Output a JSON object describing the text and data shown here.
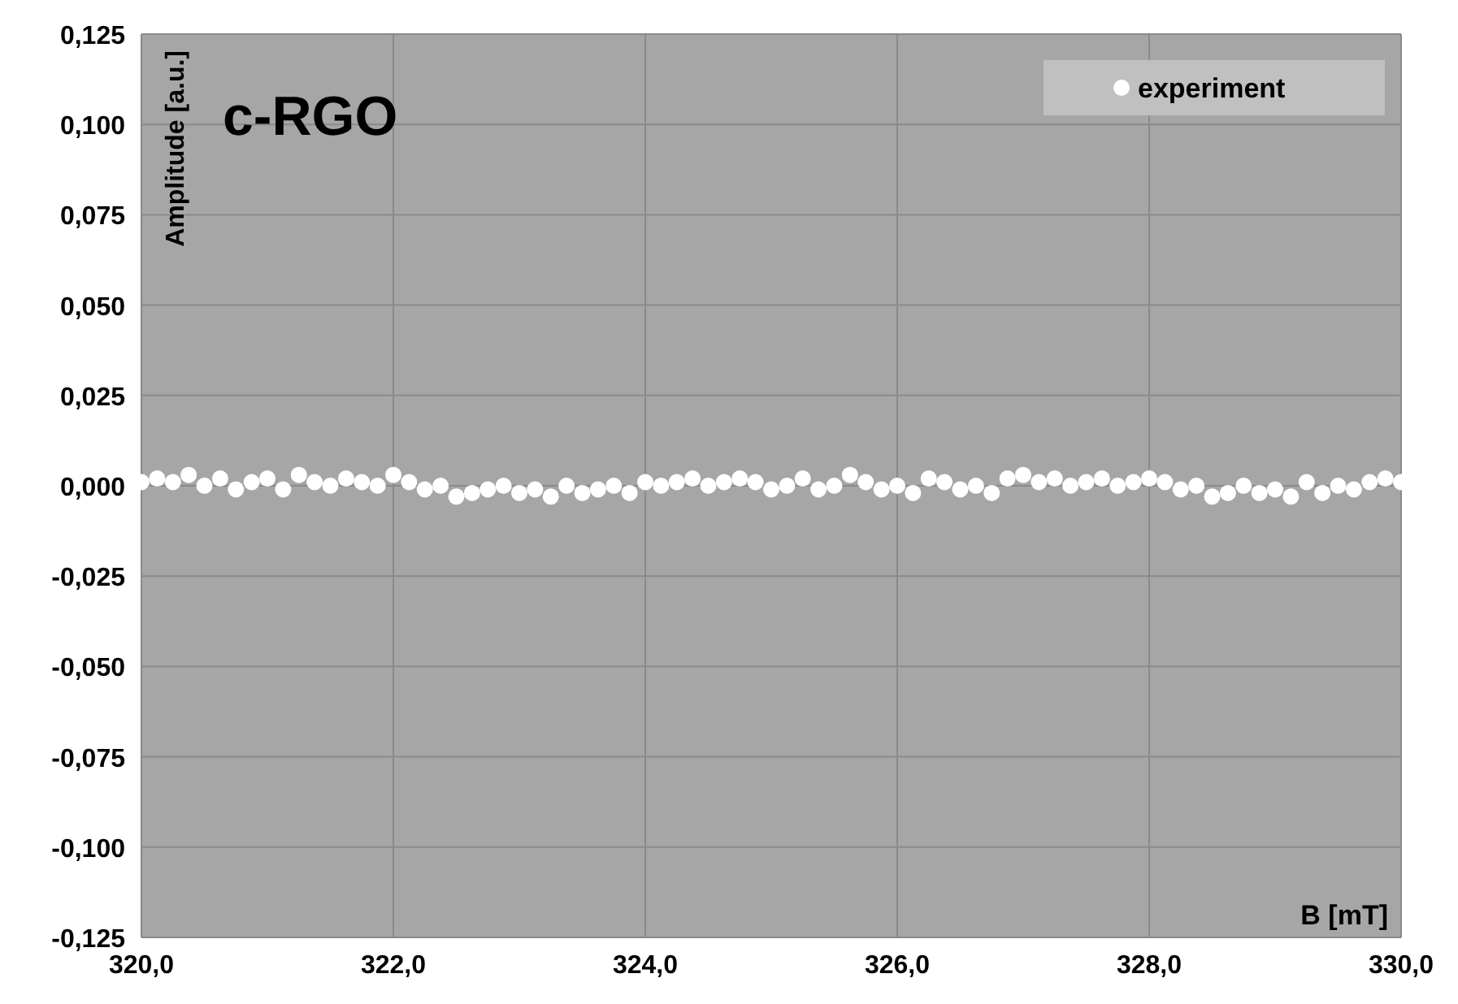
{
  "chart_data": {
    "type": "scatter",
    "xlabel": "B [mT]",
    "ylabel": "Amplitude [a.u.]",
    "annotations": [
      "c-RGO"
    ],
    "xlim": [
      320,
      330
    ],
    "ylim": [
      -0.125,
      0.125
    ],
    "xticks": [
      {
        "value": 320,
        "label": "320,0"
      },
      {
        "value": 322,
        "label": "322,0"
      },
      {
        "value": 324,
        "label": "324,0"
      },
      {
        "value": 326,
        "label": "326,0"
      },
      {
        "value": 328,
        "label": "328,0"
      },
      {
        "value": 330,
        "label": "330,0"
      }
    ],
    "yticks": [
      {
        "value": -0.125,
        "label": "-0,125"
      },
      {
        "value": -0.1,
        "label": "-0,100"
      },
      {
        "value": -0.075,
        "label": "-0,075"
      },
      {
        "value": -0.05,
        "label": "-0,050"
      },
      {
        "value": -0.025,
        "label": "-0,025"
      },
      {
        "value": 0,
        "label": "0,000"
      },
      {
        "value": 0.025,
        "label": "0,025"
      },
      {
        "value": 0.05,
        "label": "0,050"
      },
      {
        "value": 0.075,
        "label": "0,075"
      },
      {
        "value": 0.1,
        "label": "0,100"
      },
      {
        "value": 0.125,
        "label": "0,125"
      }
    ],
    "grid": true,
    "legend": "top right",
    "marker": "circle",
    "series": [
      {
        "name": "experiment",
        "color": "#ffffff",
        "x": [
          320,
          320.125,
          320.25,
          320.375,
          320.5,
          320.625,
          320.75,
          320.875,
          321,
          321.125,
          321.25,
          321.375,
          321.5,
          321.625,
          321.75,
          321.875,
          322,
          322.125,
          322.25,
          322.375,
          322.5,
          322.625,
          322.75,
          322.875,
          323,
          323.125,
          323.25,
          323.375,
          323.5,
          323.625,
          323.75,
          323.875,
          324,
          324.125,
          324.25,
          324.375,
          324.5,
          324.625,
          324.75,
          324.875,
          325,
          325.125,
          325.25,
          325.375,
          325.5,
          325.625,
          325.75,
          325.875,
          326,
          326.125,
          326.25,
          326.375,
          326.5,
          326.625,
          326.75,
          326.875,
          327,
          327.125,
          327.25,
          327.375,
          327.5,
          327.625,
          327.75,
          327.875,
          328,
          328.125,
          328.25,
          328.375,
          328.5,
          328.625,
          328.75,
          328.875,
          329,
          329.125,
          329.25,
          329.375,
          329.5,
          329.625,
          329.75,
          329.875,
          330
        ],
        "values": [
          0.001,
          0.002,
          0.001,
          0.003,
          0.0,
          0.002,
          -0.001,
          0.001,
          0.002,
          -0.001,
          0.003,
          0.001,
          0.0,
          0.002,
          0.001,
          0.0,
          0.003,
          0.001,
          -0.001,
          0.0,
          -0.003,
          -0.002,
          -0.001,
          0.0,
          -0.002,
          -0.001,
          -0.003,
          0.0,
          -0.002,
          -0.001,
          0.0,
          -0.002,
          0.001,
          0.0,
          0.001,
          0.002,
          0.0,
          0.001,
          0.002,
          0.001,
          -0.001,
          0.0,
          0.002,
          -0.001,
          0.0,
          0.003,
          0.001,
          -0.001,
          0.0,
          -0.002,
          0.002,
          0.001,
          -0.001,
          0.0,
          -0.002,
          0.002,
          0.003,
          0.001,
          0.002,
          0.0,
          0.001,
          0.002,
          0.0,
          0.001,
          0.002,
          0.001,
          -0.001,
          0.0,
          -0.003,
          -0.002,
          0.0,
          -0.002,
          -0.001,
          -0.003,
          0.001,
          -0.002,
          0.0,
          -0.001,
          0.001,
          0.002,
          0.001
        ]
      }
    ]
  }
}
